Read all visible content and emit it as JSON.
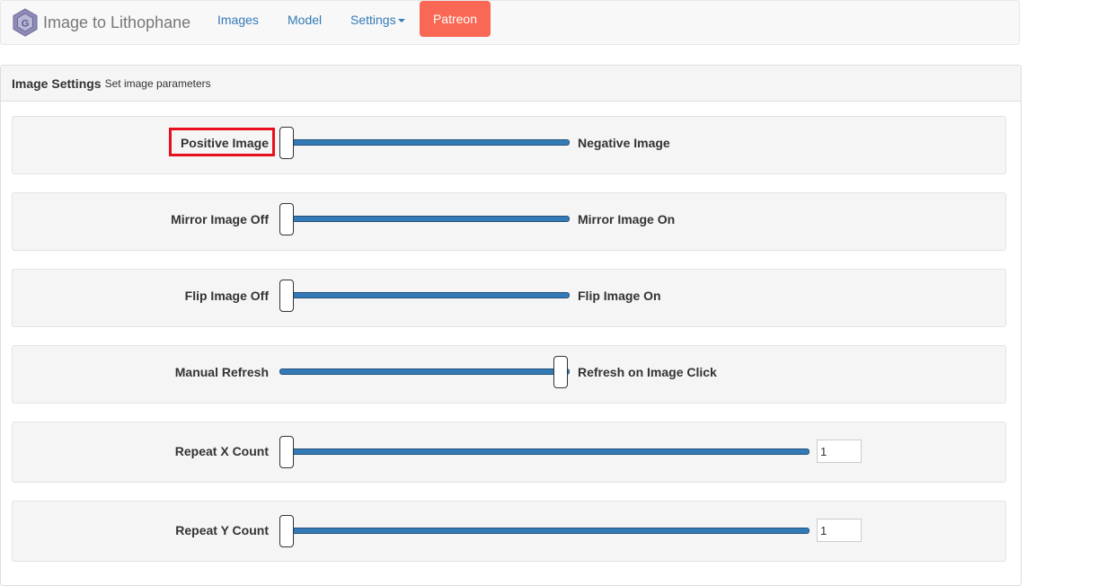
{
  "navbar": {
    "brand": "Image to Lithophane",
    "links": [
      {
        "label": "Images"
      },
      {
        "label": "Model"
      },
      {
        "label": "Settings"
      }
    ],
    "patreon_label": "Patreon"
  },
  "panel": {
    "title": "Image Settings",
    "subtitle": "Set image parameters"
  },
  "toggles": [
    {
      "left": "Positive Image",
      "right": "Negative Image",
      "value": 0
    },
    {
      "left": "Mirror Image Off",
      "right": "Mirror Image On",
      "value": 0
    },
    {
      "left": "Flip Image Off",
      "right": "Flip Image On",
      "value": 0
    },
    {
      "left": "Manual Refresh",
      "right": "Refresh on Image Click",
      "value": 1
    }
  ],
  "sliders": [
    {
      "label": "Repeat X Count",
      "value": "1"
    },
    {
      "label": "Repeat Y Count",
      "value": "1"
    }
  ],
  "colors": {
    "accent": "#337ab7",
    "patreon": "#f96854",
    "highlight": "#e8101e"
  }
}
